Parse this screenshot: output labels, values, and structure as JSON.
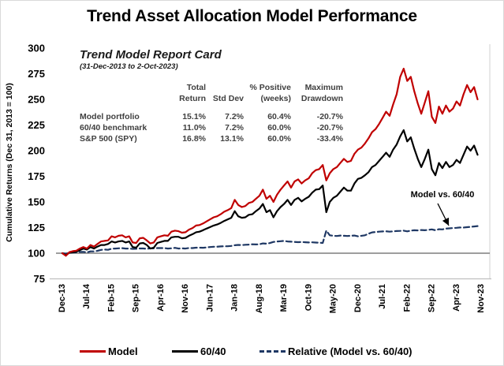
{
  "title": "Trend Asset Allocation Model Performance",
  "report_card": {
    "title": "Trend Model Report Card",
    "subtitle": "(31-Dec-2013 to 2-Oct-2023)",
    "header_row1": [
      "Total",
      "",
      "% Positive",
      "Maximum"
    ],
    "header_row2": [
      "Return",
      "Std Dev",
      "(weeks)",
      "Drawdown"
    ],
    "rows": [
      {
        "label": "Model portfolio",
        "total_return": "15.1%",
        "std_dev": "7.2%",
        "pct_positive": "60.4%",
        "max_drawdown": "-20.7%"
      },
      {
        "label": "60/40 benchmark",
        "total_return": "11.0%",
        "std_dev": "7.2%",
        "pct_positive": "60.0%",
        "max_drawdown": "-20.7%"
      },
      {
        "label": "S&P 500 (SPY)",
        "total_return": "16.8%",
        "std_dev": "13.1%",
        "pct_positive": "60.0%",
        "max_drawdown": "-33.4%"
      }
    ]
  },
  "annotation": {
    "text": "Model vs. 60/40"
  },
  "legend": [
    {
      "label": "Model",
      "color": "#C00000",
      "style": "solid"
    },
    {
      "label": "60/40",
      "color": "#000000",
      "style": "solid"
    },
    {
      "label": "Relative (Model vs. 60/40)",
      "color": "#1F3864",
      "style": "dashed"
    }
  ],
  "chart_data": {
    "type": "line",
    "title": "Trend Asset Allocation Model Performance",
    "xlabel": "",
    "ylabel": "Cumulative Returns (Dec 31, 2013 = 100)",
    "ylim": [
      75,
      300
    ],
    "yticks": [
      75,
      100,
      125,
      150,
      175,
      200,
      225,
      250,
      275,
      300
    ],
    "reference_line": 100,
    "grid": false,
    "legend_position": "bottom",
    "x_unit": "months since Dec-2013, weekly data from 31-Dec-2013 to 2-Oct-2023",
    "x_ticks": [
      {
        "label": "Dec-13",
        "m": 0
      },
      {
        "label": "Jul-14",
        "m": 7
      },
      {
        "label": "Feb-15",
        "m": 14
      },
      {
        "label": "Sep-15",
        "m": 21
      },
      {
        "label": "Apr-16",
        "m": 28
      },
      {
        "label": "Nov-16",
        "m": 35
      },
      {
        "label": "Jun-17",
        "m": 42
      },
      {
        "label": "Jan-18",
        "m": 49
      },
      {
        "label": "Aug-18",
        "m": 56
      },
      {
        "label": "Mar-19",
        "m": 63
      },
      {
        "label": "Oct-19",
        "m": 70
      },
      {
        "label": "May-20",
        "m": 77
      },
      {
        "label": "Dec-20",
        "m": 84
      },
      {
        "label": "Jul-21",
        "m": 91
      },
      {
        "label": "Feb-22",
        "m": 98
      },
      {
        "label": "Sep-22",
        "m": 105
      },
      {
        "label": "Apr-23",
        "m": 112
      },
      {
        "label": "Nov-23",
        "m": 119
      }
    ],
    "series": [
      {
        "name": "Model",
        "color": "#C00000",
        "style": "solid",
        "values": [
          100,
          97.5,
          101,
          102,
          102.5,
          104.5,
          106,
          104.5,
          108,
          106.5,
          109,
          111.5,
          112,
          112.5,
          116.5,
          115.5,
          117,
          117.5,
          115.5,
          116.5,
          110.5,
          110,
          114.5,
          115,
          112.5,
          109.5,
          110.5,
          115.5,
          116.5,
          117.5,
          117,
          121,
          122,
          121.5,
          120,
          120.5,
          123,
          124.5,
          127,
          127.5,
          129,
          131,
          133,
          135,
          136,
          138,
          140.5,
          142,
          144,
          152,
          147,
          145,
          146,
          149,
          150,
          153,
          156,
          162,
          153,
          156,
          150,
          157,
          162,
          166,
          170,
          164,
          170,
          172,
          168,
          171,
          173,
          178,
          181,
          182,
          186,
          171,
          178,
          182,
          184,
          188,
          192,
          189,
          190,
          197,
          201,
          203,
          207,
          212,
          218,
          221,
          226,
          232,
          238,
          234,
          245,
          255,
          272,
          280,
          268,
          272,
          258,
          246,
          236,
          247,
          258,
          233,
          227,
          243,
          236,
          244,
          238,
          241,
          248,
          244,
          255,
          264,
          257,
          262,
          250
        ]
      },
      {
        "name": "60/40",
        "color": "#000000",
        "style": "solid",
        "values": [
          100,
          98,
          100.5,
          101,
          101.5,
          103,
          104.5,
          103.5,
          106,
          104.5,
          106.5,
          108,
          108,
          109,
          111.5,
          110.5,
          111.5,
          112,
          110.5,
          111.5,
          106,
          105.5,
          109.5,
          110,
          108,
          104.5,
          105.5,
          110,
          111,
          112,
          112,
          115.5,
          116,
          116,
          114.5,
          115,
          117,
          118.5,
          120.5,
          121,
          122.5,
          124,
          125.5,
          127,
          128,
          129.5,
          131.5,
          133,
          134.5,
          141,
          136,
          134.5,
          135,
          137.5,
          138,
          141,
          143.5,
          148,
          140,
          142,
          135,
          141,
          145,
          148,
          152,
          147,
          152,
          154,
          150.5,
          153,
          155,
          159,
          162,
          162.5,
          166,
          140,
          150,
          154,
          156,
          160,
          164,
          161,
          161,
          168,
          172.5,
          173.5,
          176,
          179,
          184,
          186,
          190,
          194,
          198,
          194,
          201,
          206,
          214,
          220,
          209,
          213,
          202,
          192,
          184,
          192,
          201,
          182,
          176,
          188,
          183,
          189,
          184,
          186,
          191,
          188,
          196,
          204,
          200,
          205,
          196
        ]
      },
      {
        "name": "Relative (Model vs. 60/40)",
        "color": "#1F3864",
        "style": "dashed",
        "values": [
          100,
          99.5,
          100.3,
          100.8,
          100.9,
          101.2,
          101.3,
          100.8,
          101.8,
          101.8,
          102.3,
          103.2,
          103.6,
          103.3,
          104.4,
          104.5,
          104.8,
          104.9,
          104.5,
          104.5,
          104.2,
          104.3,
          104.6,
          104.6,
          104.2,
          104.8,
          104.7,
          105,
          105,
          105,
          104.5,
          104.8,
          105.2,
          104.5,
          104.8,
          104.5,
          105.1,
          105,
          105.4,
          105.4,
          105.3,
          105.6,
          106,
          106.3,
          106.3,
          106.6,
          106.8,
          106.8,
          107.1,
          107.8,
          108.1,
          107.9,
          108.2,
          108.4,
          108.7,
          108.5,
          108.7,
          109.5,
          109.3,
          109.9,
          111,
          111.4,
          111.7,
          112,
          111.5,
          111.2,
          111,
          110.8,
          110.9,
          110.7,
          110.5,
          110.6,
          110.4,
          110.2,
          110,
          122,
          117.5,
          117,
          116.8,
          117.2,
          117,
          116.8,
          117,
          117.2,
          116.5,
          117,
          117.5,
          119,
          120.3,
          120.7,
          121,
          121.2,
          121.4,
          121,
          121.3,
          121.6,
          121.8,
          122,
          121.3,
          122,
          122.4,
          122.2,
          122.6,
          122.4,
          122.8,
          123.2,
          122.4,
          123.4,
          123.2,
          124,
          124.2,
          124.5,
          124.8,
          125.1,
          125,
          125.4,
          125.7,
          126.1,
          126.5
        ]
      }
    ]
  }
}
